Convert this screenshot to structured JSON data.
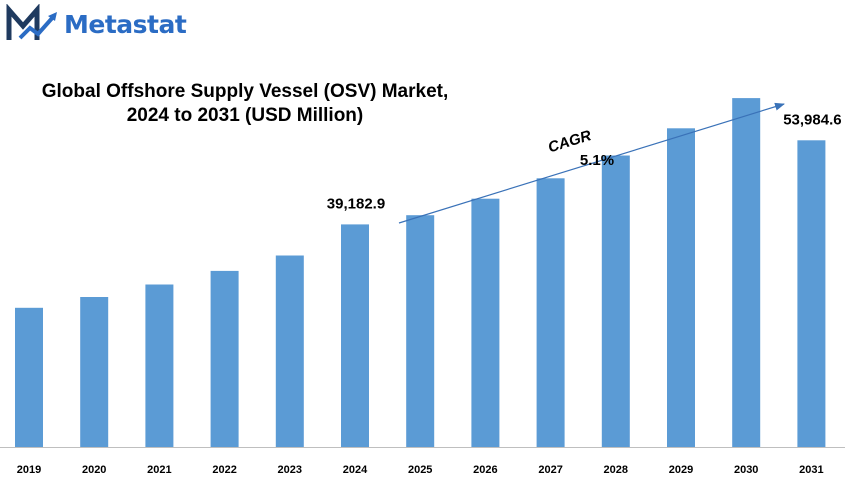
{
  "brand": {
    "name": "Metastat",
    "logo_icon": "metastat-logo-icon"
  },
  "chart_data": {
    "type": "bar",
    "title": [
      "Global Offshore Supply Vessel (OSV) Market,",
      "2024 to 2031 (USD Million)"
    ],
    "categories": [
      "2019",
      "2020",
      "2021",
      "2022",
      "2023",
      "2024",
      "2025",
      "2026",
      "2027",
      "2028",
      "2029",
      "2030",
      "2031"
    ],
    "values": [
      24500,
      26400,
      28600,
      31000,
      33700,
      39182.9,
      40800,
      43700,
      47300,
      51300,
      56100,
      61400,
      53984.6
    ],
    "data_labels": {
      "2024": "39,182.9",
      "2031": "53,984.6"
    },
    "annotation": {
      "label": "CAGR",
      "value": "5.1%"
    },
    "bar_color": "#5b9bd5",
    "arrow_color": "#3a72b8",
    "ylim": [
      0,
      66000
    ],
    "grid": false,
    "legend": "none"
  }
}
